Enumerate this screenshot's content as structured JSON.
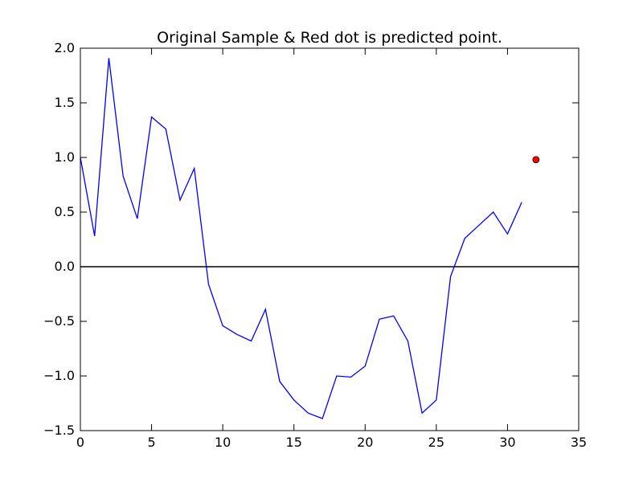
{
  "chart_data": {
    "type": "line",
    "title": "Original Sample & Red dot is predicted point.",
    "xlabel": "",
    "ylabel": "",
    "xlim": [
      0,
      35
    ],
    "ylim": [
      -1.5,
      2.0
    ],
    "x_ticks": [
      0,
      5,
      10,
      15,
      20,
      25,
      30,
      35
    ],
    "x_tick_labels": [
      "0",
      "5",
      "10",
      "15",
      "20",
      "25",
      "30",
      "35"
    ],
    "y_ticks": [
      -1.5,
      -1.0,
      -0.5,
      0.0,
      0.5,
      1.0,
      1.5,
      2.0
    ],
    "y_tick_labels": [
      "−1.5",
      "−1.0",
      "−0.5",
      "0.0",
      "0.5",
      "1.0",
      "1.5",
      "2.0"
    ],
    "grid": false,
    "reference_line": {
      "y": 0.0,
      "color": "#000000"
    },
    "series": [
      {
        "color": "#0000ff",
        "x": [
          0,
          1,
          2,
          3,
          4,
          5,
          6,
          7,
          8,
          9,
          10,
          11,
          12,
          13,
          14,
          15,
          16,
          17,
          18,
          19,
          20,
          21,
          22,
          23,
          24,
          25,
          26,
          27,
          28,
          29,
          30,
          31
        ],
        "values": [
          1.0,
          0.28,
          1.91,
          0.83,
          0.44,
          1.37,
          1.26,
          0.61,
          0.9,
          -0.16,
          -0.54,
          -0.62,
          -0.68,
          -0.39,
          -1.05,
          -1.22,
          -1.34,
          -1.39,
          -1.0,
          -1.01,
          -0.91,
          -0.48,
          -0.45,
          -0.68,
          -1.34,
          -1.22,
          -0.09,
          0.26,
          0.38,
          0.5,
          0.3,
          0.59
        ]
      }
    ],
    "predicted_point": {
      "x": 32,
      "y": 0.98,
      "color": "#ff0000"
    }
  }
}
